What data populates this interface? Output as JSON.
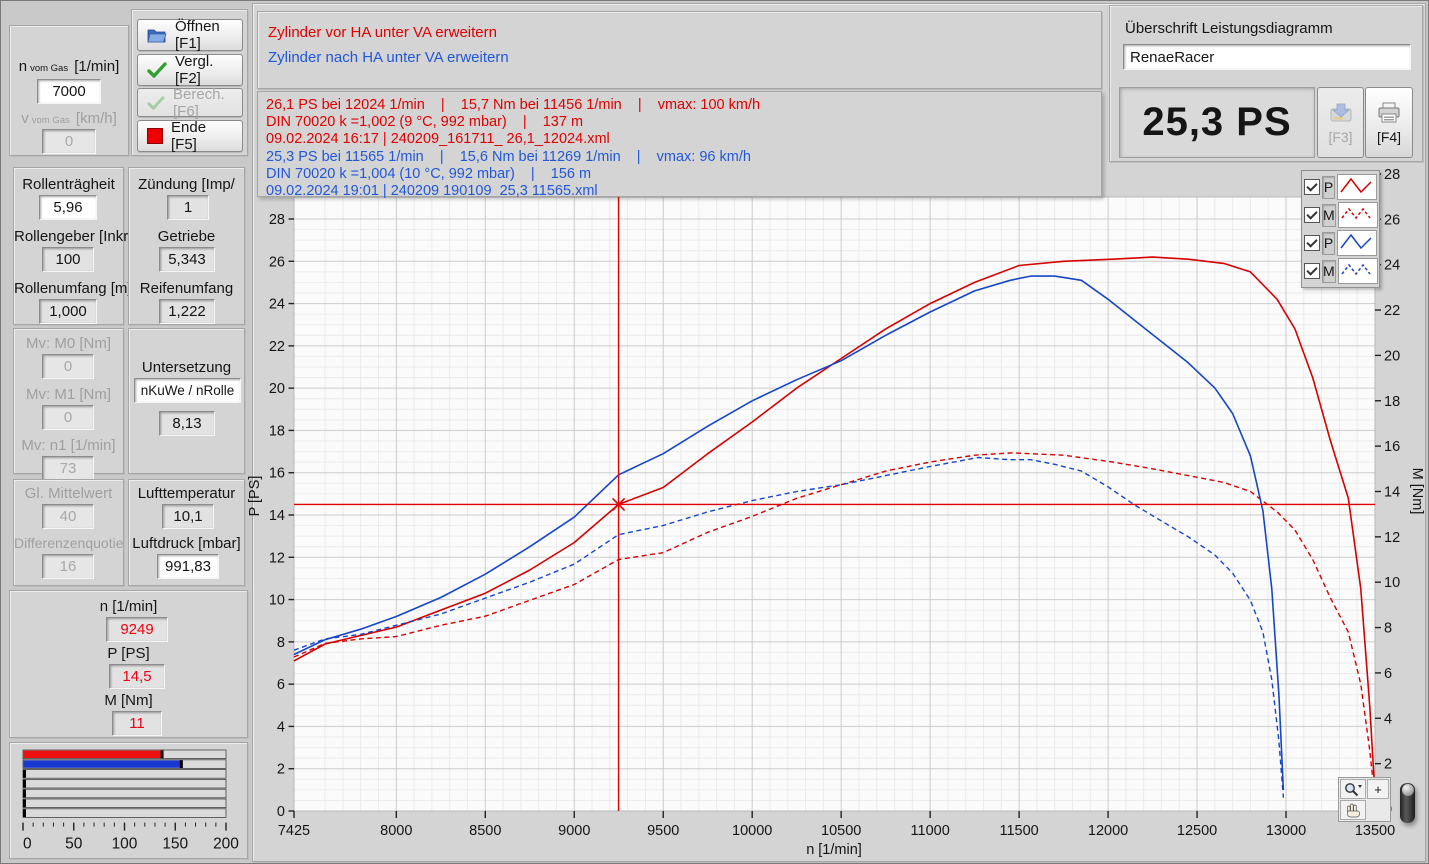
{
  "left": {
    "n_gas": {
      "base": "n",
      "sub": "vom Gas",
      "unit": "[1/min]",
      "value": "7000"
    },
    "v_gas": {
      "base": "v",
      "sub": "vom Gas",
      "unit": "[km/h]",
      "value": "0"
    },
    "buttons": {
      "open": "Öffnen [F1]",
      "compare": "Vergl. [F2]",
      "calc": "Berech. [F6]",
      "end": "Ende [F5]"
    },
    "roller": {
      "inertia_label": "Rollenträgheit",
      "inertia_value": "5,96",
      "encoder_label": "Rollengeber [Inkr/",
      "encoder_value": "100",
      "circ_label": "Rollenumfang [m]",
      "circ_value": "1,000"
    },
    "drive": {
      "ignition_label": "Zündung [Imp/",
      "ignition_value": "1",
      "gear_label": "Getriebe",
      "gear_value": "5,343",
      "tire_label": "Reifenumfang",
      "tire_value": "1,222"
    },
    "mv": {
      "m0_label": "Mv: M0 [Nm]",
      "m0_value": "0",
      "m1_label": "Mv: M1 [Nm]",
      "m1_value": "0",
      "n1_label": "Mv: n1 [1/min]",
      "n1_value": "73"
    },
    "ratio": {
      "label": "Untersetzung",
      "mode": "nKuWe / nRolle",
      "value": "8,13"
    },
    "smooth": {
      "mean_label": "Gl. Mittelwert",
      "mean_value": "40",
      "diff_label": "Differenzenquotie",
      "diff_value": "16"
    },
    "air": {
      "temp_label": "Lufttemperatur",
      "temp_value": "10,1",
      "press_label": "Luftdruck [mbar]",
      "press_value": "991,83"
    },
    "readout": {
      "n_label": "n [1/min]",
      "n_value": "9249",
      "p_label": "P [PS]",
      "p_value": "14,5",
      "m_label": "M [Nm]",
      "m_value": "11"
    },
    "gauge": {
      "max": 200,
      "tick_labels": [
        "0",
        "50",
        "100",
        "150",
        "200"
      ],
      "bars": [
        {
          "value": 137,
          "color": "#ee1111"
        },
        {
          "value": 156,
          "color": "#1838cf"
        },
        {
          "value": 0,
          "color": null
        },
        {
          "value": 0,
          "color": null
        },
        {
          "value": 0,
          "color": null
        },
        {
          "value": 0,
          "color": null
        },
        {
          "value": 0,
          "color": null
        }
      ]
    }
  },
  "messages": {
    "line_red": "Zylinder vor HA unter VA erweitern",
    "line_blue": "Zylinder nach HA unter VA erweitern"
  },
  "results": {
    "red": [
      "26,1 PS bei 12024 1/min    |    15,7 Nm bei 11456 1/min    |    vmax: 100 km/h",
      "DIN 70020 k =1,002 (9 °C, 992 mbar)    |    137 m",
      "09.02.2024 16:17 | 240209_161711_ 26,1_12024.xml"
    ],
    "blue": [
      "25,3 PS bei 11565 1/min    |    15,6 Nm bei 11269 1/min    |    vmax: 96 km/h",
      "DIN 70020 k =1,004 (10 °C, 992 mbar)    |    156 m",
      "09.02.2024 19:01 | 240209 190109  25,3 11565.xml"
    ]
  },
  "header": {
    "title_label": "Überschrift Leistungsdiagramm",
    "title_value": "RenaeRacer",
    "result_display": "25,3 PS",
    "save_label": "[F3]",
    "print_label": "[F4]"
  },
  "chart_data": {
    "type": "line",
    "xlabel": "n [1/min]",
    "ylabel_left": "P [PS]",
    "ylabel_right": "M [Nm]",
    "xlim": [
      7425,
      13500
    ],
    "x_ticks": [
      7425,
      8000,
      8500,
      9000,
      9500,
      10000,
      10500,
      11000,
      11500,
      12000,
      12500,
      13000,
      13500
    ],
    "ylim_left": [
      0,
      28
    ],
    "ylim_right": [
      0,
      28
    ],
    "y_tick_step": 2,
    "grid": true,
    "legend_position": "top-right",
    "cursor": {
      "n": 9249,
      "p": 14.5
    },
    "legend": [
      {
        "label": "P",
        "color": "#d60000",
        "dashed": false
      },
      {
        "label": "M",
        "color": "#d60000",
        "dashed": true
      },
      {
        "label": "P",
        "color": "#1646c8",
        "dashed": false
      },
      {
        "label": "M",
        "color": "#1646c8",
        "dashed": true
      }
    ],
    "series": [
      {
        "name": "P Zylinder vor HA",
        "axis": "left",
        "color": "#d60000",
        "dashed": false,
        "points": [
          [
            7425,
            7.1
          ],
          [
            7600,
            7.9
          ],
          [
            7800,
            8.3
          ],
          [
            8000,
            8.7
          ],
          [
            8250,
            9.5
          ],
          [
            8500,
            10.3
          ],
          [
            8750,
            11.4
          ],
          [
            9000,
            12.7
          ],
          [
            9249,
            14.5
          ],
          [
            9500,
            15.3
          ],
          [
            9750,
            16.9
          ],
          [
            10000,
            18.4
          ],
          [
            10250,
            20.0
          ],
          [
            10500,
            21.4
          ],
          [
            10750,
            22.8
          ],
          [
            11000,
            24.0
          ],
          [
            11250,
            25.0
          ],
          [
            11500,
            25.8
          ],
          [
            11750,
            26.0
          ],
          [
            12024,
            26.1
          ],
          [
            12250,
            26.2
          ],
          [
            12450,
            26.1
          ],
          [
            12650,
            25.9
          ],
          [
            12800,
            25.5
          ],
          [
            12950,
            24.2
          ],
          [
            13050,
            22.8
          ],
          [
            13150,
            20.5
          ],
          [
            13250,
            17.5
          ],
          [
            13350,
            14.8
          ],
          [
            13420,
            10.5
          ],
          [
            13470,
            5.0
          ],
          [
            13495,
            1.5
          ]
        ]
      },
      {
        "name": "M Zylinder vor HA",
        "axis": "right",
        "color": "#d60000",
        "dashed": true,
        "points": [
          [
            7425,
            6.7
          ],
          [
            7600,
            7.3
          ],
          [
            7800,
            7.5
          ],
          [
            8000,
            7.6
          ],
          [
            8250,
            8.1
          ],
          [
            8500,
            8.5
          ],
          [
            8750,
            9.2
          ],
          [
            9000,
            9.9
          ],
          [
            9249,
            11.0
          ],
          [
            9500,
            11.3
          ],
          [
            9750,
            12.2
          ],
          [
            10000,
            12.9
          ],
          [
            10250,
            13.7
          ],
          [
            10500,
            14.3
          ],
          [
            10750,
            14.9
          ],
          [
            11000,
            15.3
          ],
          [
            11250,
            15.6
          ],
          [
            11456,
            15.7
          ],
          [
            11750,
            15.6
          ],
          [
            12024,
            15.3
          ],
          [
            12250,
            15.0
          ],
          [
            12450,
            14.7
          ],
          [
            12650,
            14.4
          ],
          [
            12800,
            14.0
          ],
          [
            12950,
            13.1
          ],
          [
            13050,
            12.3
          ],
          [
            13150,
            11.0
          ],
          [
            13250,
            9.3
          ],
          [
            13350,
            7.8
          ],
          [
            13420,
            5.5
          ],
          [
            13470,
            2.6
          ],
          [
            13495,
            0.8
          ]
        ]
      },
      {
        "name": "P Zylinder nach HA",
        "axis": "left",
        "color": "#1646c8",
        "dashed": false,
        "points": [
          [
            7425,
            7.4
          ],
          [
            7600,
            8.1
          ],
          [
            7800,
            8.6
          ],
          [
            8000,
            9.2
          ],
          [
            8250,
            10.1
          ],
          [
            8500,
            11.2
          ],
          [
            8750,
            12.5
          ],
          [
            9000,
            13.9
          ],
          [
            9249,
            15.9
          ],
          [
            9500,
            16.9
          ],
          [
            9750,
            18.2
          ],
          [
            10000,
            19.4
          ],
          [
            10250,
            20.4
          ],
          [
            10500,
            21.3
          ],
          [
            10750,
            22.5
          ],
          [
            11000,
            23.6
          ],
          [
            11250,
            24.6
          ],
          [
            11450,
            25.1
          ],
          [
            11565,
            25.3
          ],
          [
            11700,
            25.3
          ],
          [
            11850,
            25.1
          ],
          [
            12000,
            24.2
          ],
          [
            12150,
            23.2
          ],
          [
            12300,
            22.2
          ],
          [
            12450,
            21.2
          ],
          [
            12600,
            20.0
          ],
          [
            12700,
            18.8
          ],
          [
            12800,
            16.8
          ],
          [
            12870,
            14.2
          ],
          [
            12920,
            10.5
          ],
          [
            12960,
            5.5
          ],
          [
            12985,
            1.0
          ]
        ]
      },
      {
        "name": "M Zylinder nach HA",
        "axis": "right",
        "color": "#1646c8",
        "dashed": true,
        "points": [
          [
            7425,
            7.0
          ],
          [
            7600,
            7.5
          ],
          [
            7800,
            7.7
          ],
          [
            8000,
            8.1
          ],
          [
            8250,
            8.6
          ],
          [
            8500,
            9.3
          ],
          [
            8750,
            10.0
          ],
          [
            9000,
            10.8
          ],
          [
            9249,
            12.1
          ],
          [
            9500,
            12.5
          ],
          [
            9750,
            13.1
          ],
          [
            10000,
            13.6
          ],
          [
            10250,
            14.0
          ],
          [
            10500,
            14.3
          ],
          [
            10750,
            14.7
          ],
          [
            11000,
            15.1
          ],
          [
            11269,
            15.5
          ],
          [
            11450,
            15.4
          ],
          [
            11565,
            15.4
          ],
          [
            11700,
            15.2
          ],
          [
            11850,
            14.9
          ],
          [
            12000,
            14.2
          ],
          [
            12150,
            13.4
          ],
          [
            12300,
            12.7
          ],
          [
            12450,
            12.0
          ],
          [
            12600,
            11.2
          ],
          [
            12700,
            10.4
          ],
          [
            12800,
            9.2
          ],
          [
            12870,
            7.8
          ],
          [
            12920,
            5.7
          ],
          [
            12960,
            3.0
          ],
          [
            12985,
            0.5
          ]
        ]
      }
    ]
  }
}
